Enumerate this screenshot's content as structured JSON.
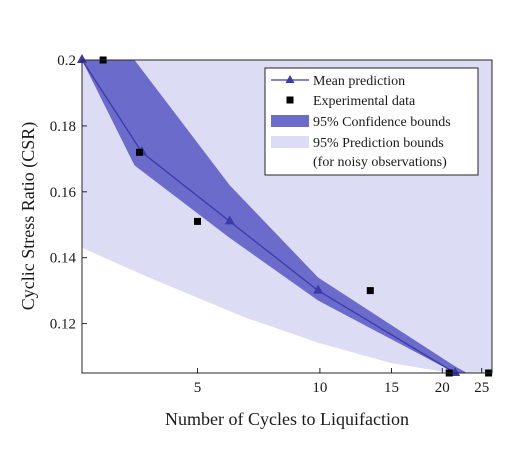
{
  "chart_data": {
    "type": "line",
    "xscale": "log",
    "xlabel": "Number of Cycles to Liquifaction",
    "ylabel": "Cyclic Stress Ratio (CSR)",
    "xlim": [
      2.6,
      26.5
    ],
    "ylim": [
      0.105,
      0.2
    ],
    "xticks": [
      5,
      10,
      15,
      20,
      25
    ],
    "xtick_labels": [
      "5",
      "10",
      "15",
      "20",
      "25"
    ],
    "yticks": [
      0.12,
      0.14,
      0.16,
      0.18,
      0.2
    ],
    "ytick_labels": [
      "0.12",
      "0.14",
      "0.16",
      "0.18",
      "0.2"
    ],
    "legend_position": "top-right",
    "series": [
      {
        "name": "Mean prediction",
        "kind": "line-markers",
        "color": "#3a3aa8",
        "marker": "triangle",
        "x": [
          2.6,
          3.65,
          6.0,
          9.9,
          21.5
        ],
        "y": [
          0.2,
          0.172,
          0.151,
          0.13,
          0.105
        ]
      },
      {
        "name": "Experimental data",
        "kind": "scatter",
        "color": "#000000",
        "marker": "square",
        "x": [
          2.93,
          3.6,
          5.0,
          13.3,
          20.8,
          26.0
        ],
        "y": [
          0.2,
          0.172,
          0.151,
          0.13,
          0.105,
          0.105
        ]
      },
      {
        "name": "95% Confidence bounds",
        "kind": "band",
        "color": "#6b6bcc",
        "x": [
          2.6,
          3.5,
          6.0,
          9.9,
          21.5,
          23.0
        ],
        "upper": [
          0.2,
          0.2,
          0.162,
          0.134,
          0.107,
          0.105
        ],
        "lower": [
          0.2,
          0.168,
          0.146,
          0.127,
          0.105,
          0.105
        ]
      },
      {
        "name": "95% Prediction bounds",
        "name_line2": "(for noisy observations)",
        "kind": "band",
        "color": "#dcdcf4",
        "x": [
          2.6,
          3.8,
          6.5,
          10.0,
          15.0,
          21.0,
          26.5
        ],
        "upper": [
          0.2,
          0.2,
          0.2,
          0.2,
          0.2,
          0.2,
          0.2
        ],
        "lower": [
          0.143,
          0.134,
          0.122,
          0.114,
          0.108,
          0.105,
          0.105
        ]
      }
    ]
  }
}
